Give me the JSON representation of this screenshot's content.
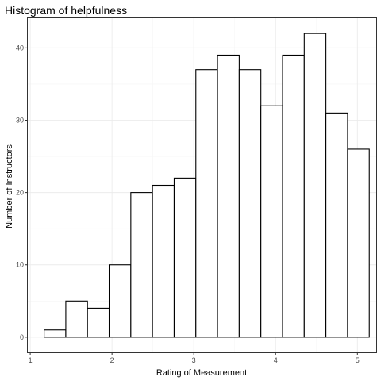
{
  "chart_data": {
    "type": "bar",
    "title": "Histogram of helpfulness",
    "xlabel": "Rating of Measurement",
    "ylabel": "Number of Instructors",
    "x_ticks": [
      1,
      2,
      3,
      4,
      5
    ],
    "y_ticks": [
      0,
      10,
      20,
      30,
      40
    ],
    "xlim": [
      0.97,
      5.23
    ],
    "ylim": [
      -2.1,
      44.1
    ],
    "grid": true,
    "bins": [
      {
        "start": 1.17,
        "end": 1.435,
        "count": 1
      },
      {
        "start": 1.435,
        "end": 1.7,
        "count": 5
      },
      {
        "start": 1.7,
        "end": 1.965,
        "count": 4
      },
      {
        "start": 1.965,
        "end": 2.23,
        "count": 10
      },
      {
        "start": 2.23,
        "end": 2.495,
        "count": 20
      },
      {
        "start": 2.495,
        "end": 2.76,
        "count": 21
      },
      {
        "start": 2.76,
        "end": 3.025,
        "count": 22
      },
      {
        "start": 3.025,
        "end": 3.29,
        "count": 37
      },
      {
        "start": 3.29,
        "end": 3.555,
        "count": 39
      },
      {
        "start": 3.555,
        "end": 3.82,
        "count": 37
      },
      {
        "start": 3.82,
        "end": 4.085,
        "count": 32
      },
      {
        "start": 4.085,
        "end": 4.35,
        "count": 39
      },
      {
        "start": 4.35,
        "end": 4.615,
        "count": 42
      },
      {
        "start": 4.615,
        "end": 4.88,
        "count": 31
      },
      {
        "start": 4.88,
        "end": 5.145,
        "count": 26
      }
    ]
  }
}
